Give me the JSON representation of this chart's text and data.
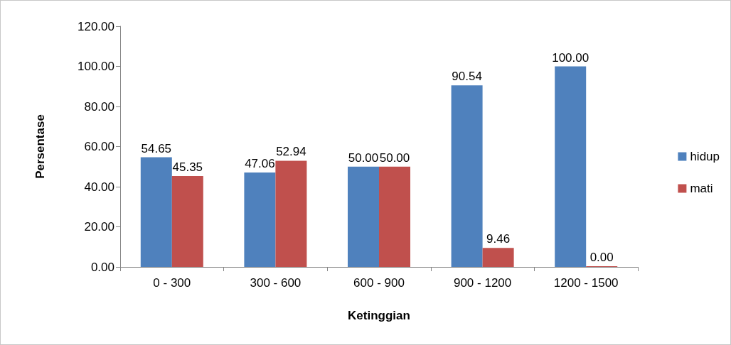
{
  "chart_data": {
    "type": "bar",
    "xlabel": "Ketinggian",
    "ylabel": "Persentase",
    "categories": [
      "0 - 300",
      "300 - 600",
      "600 - 900",
      "900 - 1200",
      "1200 - 1500"
    ],
    "series": [
      {
        "name": "hidup",
        "color": "#4f81bd",
        "values": [
          54.65,
          47.06,
          50.0,
          90.54,
          100.0
        ],
        "value_labels": [
          "54.65",
          "47.06",
          "50.00",
          "90.54",
          "100.00"
        ]
      },
      {
        "name": "mati",
        "color": "#c0504d",
        "values": [
          45.35,
          52.94,
          50.0,
          9.46,
          0.0
        ],
        "value_labels": [
          "45.35",
          "52.94",
          "50.00",
          "9.46",
          "0.00"
        ]
      }
    ],
    "ylim": [
      0,
      120
    ],
    "yticks": [
      {
        "value": 0,
        "label": "0.00"
      },
      {
        "value": 20,
        "label": "20.00"
      },
      {
        "value": 40,
        "label": "40.00"
      },
      {
        "value": 60,
        "label": "60.00"
      },
      {
        "value": 80,
        "label": "80.00"
      },
      {
        "value": 100,
        "label": "100.00"
      },
      {
        "value": 120,
        "label": "120.00"
      }
    ],
    "grid": false,
    "legend": "right"
  }
}
